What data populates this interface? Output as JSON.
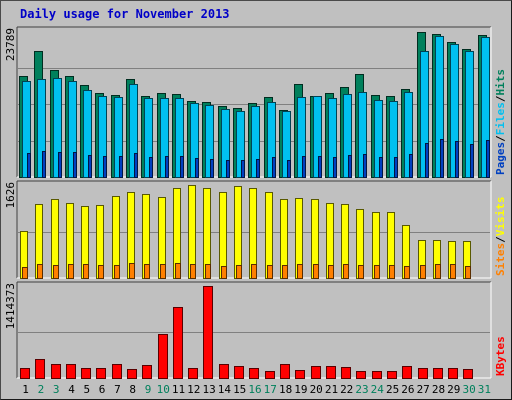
{
  "title": "Daily usage for November 2013",
  "colors": {
    "hits": "#00805c",
    "files": "#00c0f0",
    "pages": "#0040c0",
    "visits": "#ffff00",
    "sites": "#ff8000",
    "kbytes": "#ff0000",
    "weekend_label": "#00805c",
    "weekday_label": "#000000",
    "panel_bg": "#c0c0c0"
  },
  "chart_data": [
    {
      "type": "bar",
      "name": "hits-files-pages",
      "categories": [
        "1",
        "2",
        "3",
        "4",
        "5",
        "6",
        "7",
        "8",
        "9",
        "10",
        "11",
        "12",
        "13",
        "14",
        "15",
        "16",
        "17",
        "18",
        "19",
        "20",
        "21",
        "22",
        "23",
        "24",
        "25",
        "26",
        "27",
        "28",
        "29",
        "30",
        "31"
      ],
      "max_tick_label": "23789",
      "ylim": [
        0,
        23789
      ],
      "right_label": [
        {
          "text": "Pages",
          "color_key": "pages"
        },
        {
          "text": "/",
          "color_key": "weekday_label"
        },
        {
          "text": "Files",
          "color_key": "files"
        },
        {
          "text": "/",
          "color_key": "weekday_label"
        },
        {
          "text": "Hits",
          "color_key": "hits"
        }
      ],
      "series": [
        {
          "name": "Hits",
          "color_key": "hits",
          "values": [
            16400,
            20600,
            17500,
            16400,
            15000,
            13700,
            13300,
            16000,
            13200,
            13700,
            13500,
            12400,
            12300,
            11600,
            11200,
            12000,
            13000,
            10900,
            15100,
            13200,
            13700,
            14700,
            16800,
            13400,
            13200,
            14400,
            23700,
            23300,
            22000,
            20900,
            23200
          ]
        },
        {
          "name": "Files",
          "color_key": "files",
          "values": [
            15700,
            16000,
            16100,
            15600,
            14200,
            13200,
            13000,
            15200,
            12900,
            12800,
            12800,
            12100,
            11700,
            11100,
            10800,
            11600,
            12200,
            10700,
            13100,
            13200,
            12900,
            13600,
            13900,
            12600,
            12400,
            13900,
            20600,
            22900,
            21600,
            20500,
            22800
          ]
        },
        {
          "name": "Pages",
          "color_key": "pages",
          "values": [
            3900,
            4200,
            4100,
            4100,
            3600,
            3500,
            3400,
            3900,
            3300,
            3400,
            3500,
            3100,
            3000,
            2800,
            2700,
            3000,
            3200,
            2700,
            3400,
            3400,
            3300,
            3600,
            3700,
            3300,
            3200,
            3700,
            5600,
            6200,
            5800,
            5400,
            6100
          ]
        }
      ]
    },
    {
      "type": "bar",
      "name": "visits-sites",
      "categories": [
        "1",
        "2",
        "3",
        "4",
        "5",
        "6",
        "7",
        "8",
        "9",
        "10",
        "11",
        "12",
        "13",
        "14",
        "15",
        "16",
        "17",
        "18",
        "19",
        "20",
        "21",
        "22",
        "23",
        "24",
        "25",
        "26",
        "27",
        "28",
        "29",
        "30",
        "31"
      ],
      "max_tick_label": "1626",
      "ylim": [
        0,
        1626
      ],
      "right_label": [
        {
          "text": "Sites",
          "color_key": "sites"
        },
        {
          "text": "/",
          "color_key": "weekday_label"
        },
        {
          "text": "Visits",
          "color_key": "visits"
        }
      ],
      "series": [
        {
          "name": "Visits",
          "color_key": "visits",
          "values": [
            820,
            1300,
            1380,
            1320,
            1260,
            1270,
            1430,
            1500,
            1470,
            1420,
            1580,
            1630,
            1580,
            1500,
            1600,
            1570,
            1510,
            1380,
            1400,
            1380,
            1320,
            1290,
            1200,
            1150,
            1150,
            930,
            660,
            660,
            650,
            650,
            0
          ]
        },
        {
          "name": "Sites",
          "color_key": "sites",
          "values": [
            200,
            250,
            220,
            250,
            250,
            230,
            230,
            270,
            250,
            250,
            270,
            250,
            250,
            210,
            230,
            240,
            230,
            230,
            240,
            240,
            230,
            240,
            220,
            230,
            220,
            210,
            220,
            250,
            250,
            210,
            0
          ]
        }
      ]
    },
    {
      "type": "bar",
      "name": "kbytes",
      "categories": [
        "1",
        "2",
        "3",
        "4",
        "5",
        "6",
        "7",
        "8",
        "9",
        "10",
        "11",
        "12",
        "13",
        "14",
        "15",
        "16",
        "17",
        "18",
        "19",
        "20",
        "21",
        "22",
        "23",
        "24",
        "25",
        "26",
        "27",
        "28",
        "29",
        "30",
        "31"
      ],
      "max_tick_label": "1414373",
      "ylim": [
        0,
        1414373
      ],
      "right_label": [
        {
          "text": "KBytes",
          "color_key": "kbytes"
        }
      ],
      "series": [
        {
          "name": "KBytes",
          "color_key": "kbytes",
          "values": [
            150000,
            290000,
            210000,
            220000,
            160000,
            160000,
            210000,
            140000,
            200000,
            680000,
            1090000,
            160000,
            1414373,
            220000,
            190000,
            150000,
            100000,
            210000,
            130000,
            180000,
            180000,
            170000,
            100000,
            100000,
            100000,
            190000,
            160000,
            150000,
            150000,
            140000,
            0
          ]
        }
      ]
    }
  ],
  "weekend_days": [
    "2",
    "3",
    "9",
    "10",
    "16",
    "17",
    "23",
    "24",
    "30",
    "31"
  ]
}
